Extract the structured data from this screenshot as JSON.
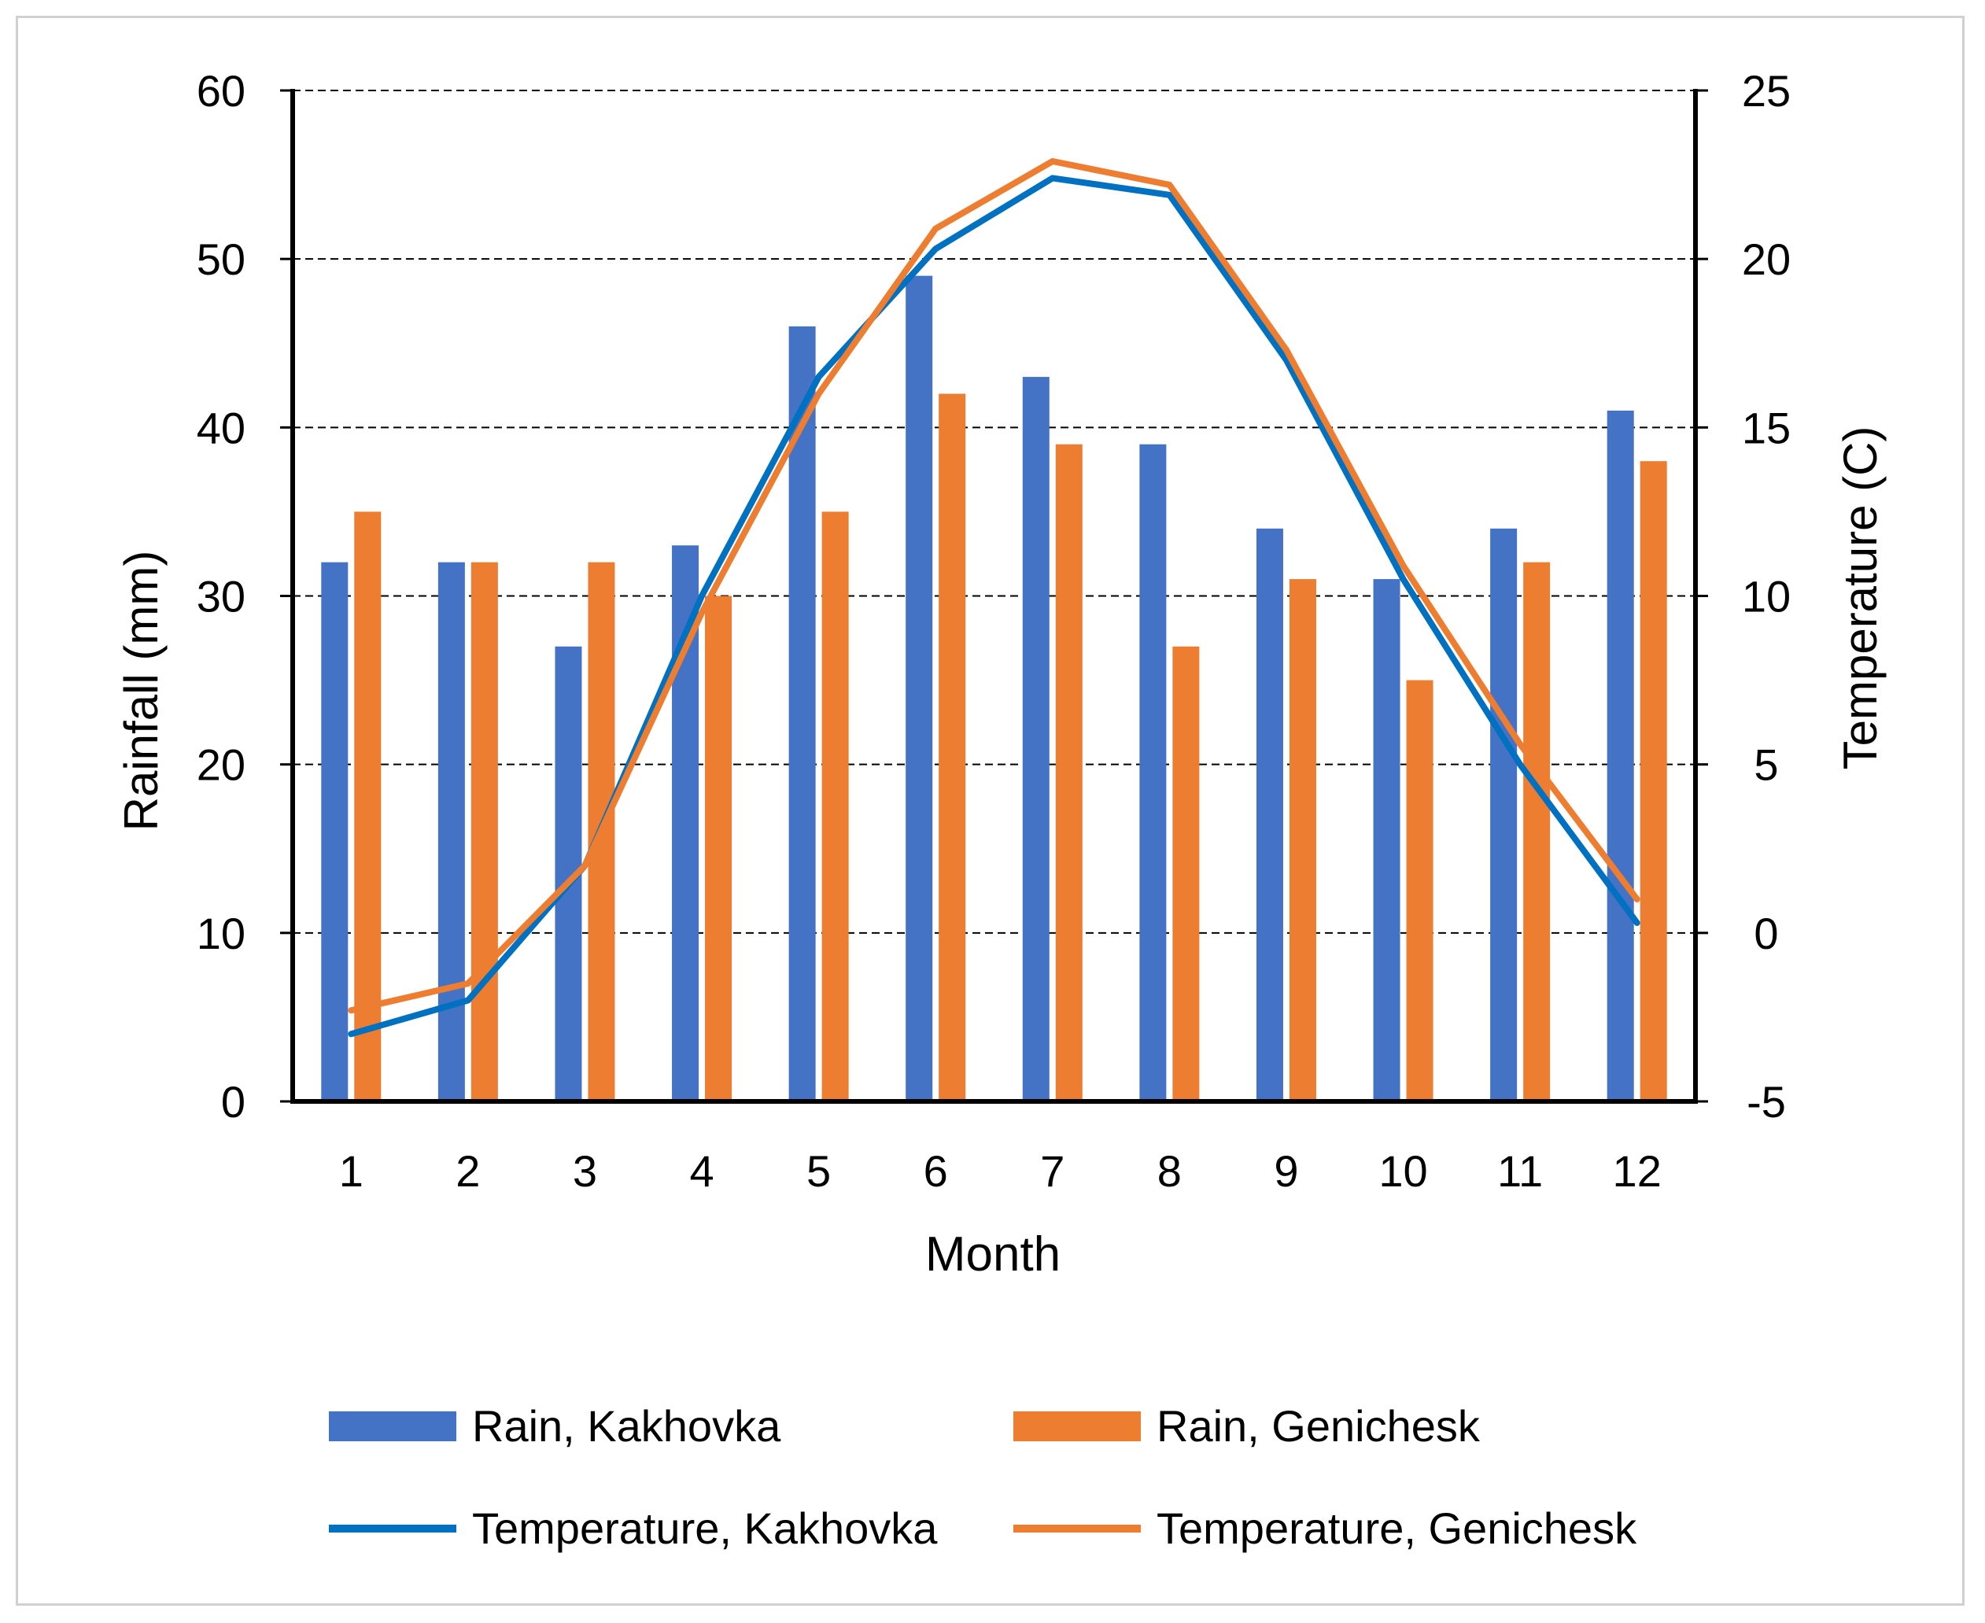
{
  "chart_data": {
    "type": "bar+line",
    "title": "",
    "xlabel": "Month",
    "ylabel": "Rainfall (mm)",
    "y2label": "Temperature (C)",
    "categories": [
      "1",
      "2",
      "3",
      "4",
      "5",
      "6",
      "7",
      "8",
      "9",
      "10",
      "11",
      "12"
    ],
    "ylim": [
      0,
      60
    ],
    "y_ticks": [
      "0",
      "10",
      "20",
      "30",
      "40",
      "50",
      "60"
    ],
    "y2lim": [
      -5,
      25
    ],
    "y2_ticks": [
      "-5",
      "0",
      "5",
      "10",
      "15",
      "20",
      "25"
    ],
    "grid": "horizontal dashed",
    "legend_position": "bottom",
    "bar_series": [
      {
        "name": "Rain, Kakhovka",
        "color": "#4472C4",
        "values": [
          32,
          32,
          27,
          33,
          46,
          49,
          43,
          39,
          34,
          31,
          34,
          41
        ]
      },
      {
        "name": "Rain, Genichesk",
        "color": "#ED7D31",
        "values": [
          35,
          32,
          32,
          30,
          35,
          42,
          39,
          27,
          31,
          25,
          32,
          38
        ]
      }
    ],
    "line_series": [
      {
        "name": "Temperature, Kakhovka",
        "color": "#0070C0",
        "values": [
          -3.0,
          -2.0,
          2.0,
          10.0,
          16.5,
          20.3,
          22.4,
          21.9,
          17.0,
          10.5,
          5.0,
          0.3
        ]
      },
      {
        "name": "Temperature, Genichesk",
        "color": "#ED7D31",
        "values": [
          -2.3,
          -1.5,
          2.0,
          9.5,
          16.0,
          20.9,
          22.9,
          22.2,
          17.3,
          10.9,
          5.6,
          1.0
        ]
      }
    ]
  }
}
